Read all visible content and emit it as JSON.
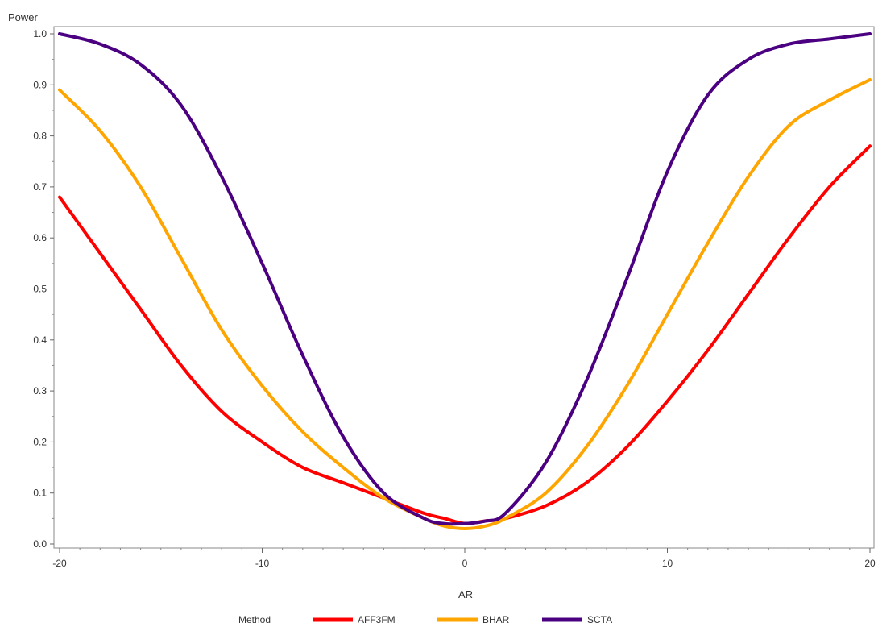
{
  "chart_data": {
    "type": "line",
    "title": "",
    "xlabel": "AR",
    "ylabel": "Power",
    "xlim": [
      -20,
      20
    ],
    "ylim": [
      0.0,
      1.0
    ],
    "xticks": [
      "-20",
      "-10",
      "0",
      "10",
      "20"
    ],
    "yticks": [
      "0.0",
      "0.1",
      "0.2",
      "0.3",
      "0.4",
      "0.5",
      "0.6",
      "0.7",
      "0.8",
      "0.9",
      "1.0"
    ],
    "grid": false,
    "legend": {
      "title": "Method",
      "placement": "bottom"
    },
    "x": [
      -20,
      -18,
      -16,
      -14,
      -12,
      -10,
      -8,
      -6,
      -4,
      -2,
      -1,
      0,
      1,
      2,
      4,
      6,
      8,
      10,
      12,
      14,
      16,
      18,
      20
    ],
    "series": [
      {
        "name": "AFF3FM",
        "color": "#ff0000",
        "values": [
          0.68,
          0.57,
          0.46,
          0.35,
          0.26,
          0.2,
          0.15,
          0.12,
          0.09,
          0.06,
          0.05,
          0.04,
          0.045,
          0.05,
          0.075,
          0.12,
          0.19,
          0.28,
          0.38,
          0.49,
          0.6,
          0.7,
          0.78
        ]
      },
      {
        "name": "BHAR",
        "color": "#ffa500",
        "values": [
          0.89,
          0.81,
          0.7,
          0.56,
          0.42,
          0.31,
          0.22,
          0.15,
          0.09,
          0.05,
          0.035,
          0.03,
          0.035,
          0.05,
          0.1,
          0.19,
          0.31,
          0.45,
          0.59,
          0.72,
          0.82,
          0.87,
          0.91
        ]
      },
      {
        "name": "SCTA",
        "color": "#4b0082",
        "values": [
          1.0,
          0.98,
          0.94,
          0.86,
          0.72,
          0.55,
          0.37,
          0.21,
          0.1,
          0.05,
          0.04,
          0.04,
          0.045,
          0.06,
          0.16,
          0.32,
          0.52,
          0.73,
          0.88,
          0.95,
          0.98,
          0.99,
          1.0
        ]
      }
    ]
  }
}
